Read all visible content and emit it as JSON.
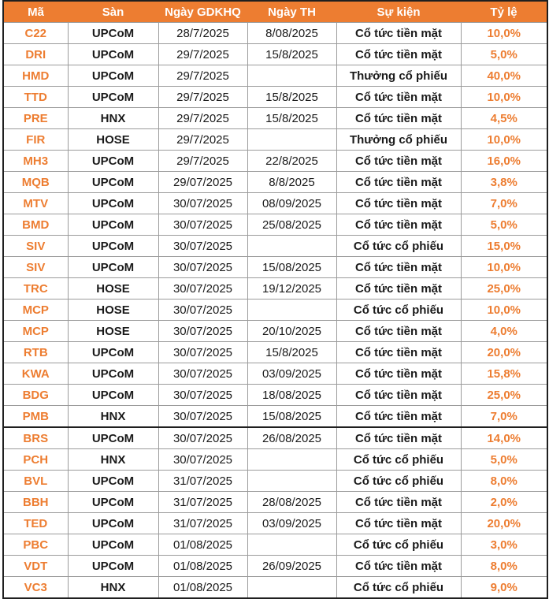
{
  "styles": {
    "header_bg": "#ED7D31",
    "accent_text": "#ED7D31",
    "body_text": "#1A1A1A",
    "grid_line": "#9B9B9B",
    "outer_border": "#1F1F1F"
  },
  "layout": {
    "section_break_row_index": 19
  },
  "chart_data": {
    "type": "table",
    "title": "",
    "columns": [
      "Mã",
      "Sàn",
      "Ngày GDKHQ",
      "Ngày TH",
      "Sự kiện",
      "Tỷ lệ"
    ],
    "rows": [
      [
        "C22",
        "UPCoM",
        "28/7/2025",
        "8/08/2025",
        "Cổ tức tiền mặt",
        "10,0%"
      ],
      [
        "DRI",
        "UPCoM",
        "29/7/2025",
        "15/8/2025",
        "Cổ tức tiền mặt",
        "5,0%"
      ],
      [
        "HMD",
        "UPCoM",
        "29/7/2025",
        "",
        "Thưởng cổ phiếu",
        "40,0%"
      ],
      [
        "TTD",
        "UPCoM",
        "29/7/2025",
        "15/8/2025",
        "Cổ tức tiền mặt",
        "10,0%"
      ],
      [
        "PRE",
        "HNX",
        "29/7/2025",
        "15/8/2025",
        "Cổ tức tiền mặt",
        "4,5%"
      ],
      [
        "FIR",
        "HOSE",
        "29/7/2025",
        "",
        "Thưởng cổ phiếu",
        "10,0%"
      ],
      [
        "MH3",
        "UPCoM",
        "29/7/2025",
        "22/8/2025",
        "Cổ tức tiền mặt",
        "16,0%"
      ],
      [
        "MQB",
        "UPCoM",
        "29/07/2025",
        "8/8/2025",
        "Cổ tức tiền mặt",
        "3,8%"
      ],
      [
        "MTV",
        "UPCoM",
        "30/07/2025",
        "08/09/2025",
        "Cổ tức tiền mặt",
        "7,0%"
      ],
      [
        "BMD",
        "UPCoM",
        "30/07/2025",
        "25/08/2025",
        "Cổ tức tiền mặt",
        "5,0%"
      ],
      [
        "SIV",
        "UPCoM",
        "30/07/2025",
        "",
        "Cổ tức cổ phiếu",
        "15,0%"
      ],
      [
        "SIV",
        "UPCoM",
        "30/07/2025",
        "15/08/2025",
        "Cổ tức tiền mặt",
        "10,0%"
      ],
      [
        "TRC",
        "HOSE",
        "30/07/2025",
        "19/12/2025",
        "Cổ tức tiền mặt",
        "25,0%"
      ],
      [
        "MCP",
        "HOSE",
        "30/07/2025",
        "",
        "Cổ tức cổ phiếu",
        "10,0%"
      ],
      [
        "MCP",
        "HOSE",
        "30/07/2025",
        "20/10/2025",
        "Cổ tức tiền mặt",
        "4,0%"
      ],
      [
        "RTB",
        "UPCoM",
        "30/07/2025",
        "15/8/2025",
        "Cổ tức tiền mặt",
        "20,0%"
      ],
      [
        "KWA",
        "UPCoM",
        "30/07/2025",
        "03/09/2025",
        "Cổ tức tiền mặt",
        "15,8%"
      ],
      [
        "BDG",
        "UPCoM",
        "30/07/2025",
        "18/08/2025",
        "Cổ tức tiền mặt",
        "25,0%"
      ],
      [
        "PMB",
        "HNX",
        "30/07/2025",
        "15/08/2025",
        "Cổ tức tiền mặt",
        "7,0%"
      ],
      [
        "BRS",
        "UPCoM",
        "30/07/2025",
        "26/08/2025",
        "Cổ tức tiền mặt",
        "14,0%"
      ],
      [
        "PCH",
        "HNX",
        "30/07/2025",
        "",
        "Cổ tức cổ phiếu",
        "5,0%"
      ],
      [
        "BVL",
        "UPCoM",
        "31/07/2025",
        "",
        "Cổ tức cổ phiếu",
        "8,0%"
      ],
      [
        "BBH",
        "UPCoM",
        "31/07/2025",
        "28/08/2025",
        "Cổ tức tiền mặt",
        "2,0%"
      ],
      [
        "TED",
        "UPCoM",
        "31/07/2025",
        "03/09/2025",
        "Cổ tức tiền mặt",
        "20,0%"
      ],
      [
        "PBC",
        "UPCoM",
        "01/08/2025",
        "",
        "Cổ tức cổ phiếu",
        "3,0%"
      ],
      [
        "VDT",
        "UPCoM",
        "01/08/2025",
        "26/09/2025",
        "Cổ tức tiền mặt",
        "8,0%"
      ],
      [
        "VC3",
        "HNX",
        "01/08/2025",
        "",
        "Cổ tức cổ phiếu",
        "9,0%"
      ]
    ]
  }
}
